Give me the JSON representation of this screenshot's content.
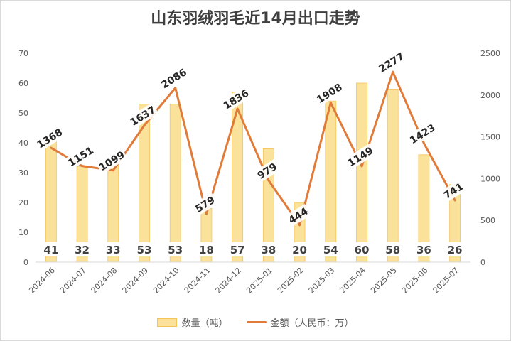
{
  "title": "山东羽绒羽毛近14月出口走势",
  "colors": {
    "bar_fill": "#fbe29a",
    "bar_edge": "#f4c45a",
    "line": "#e07b39",
    "label_bg": "#ffffff"
  },
  "legend": {
    "bar_label": "数量（吨）",
    "line_label": "金额（人民币：万）"
  },
  "chart_data": {
    "type": "bar+line",
    "title": "山东羽绒羽毛近14月出口走势",
    "categories": [
      "2024-06",
      "2024-07",
      "2024-08",
      "2024-09",
      "2024-10",
      "2024-11",
      "2024-12",
      "2025-01",
      "2025-02",
      "2025-03",
      "2025-04",
      "2025-05",
      "2025-06",
      "2025-07"
    ],
    "series": [
      {
        "name": "数量（吨）",
        "type": "bar",
        "axis": "left",
        "values": [
          41,
          32,
          33,
          53,
          53,
          18,
          57,
          38,
          20,
          54,
          60,
          58,
          36,
          26
        ]
      },
      {
        "name": "金额（人民币：万）",
        "type": "line",
        "axis": "right",
        "values": [
          1368,
          1151,
          1099,
          1637,
          2086,
          579,
          1836,
          979,
          444,
          1908,
          1149,
          2277,
          1423,
          741
        ]
      }
    ],
    "left_axis": {
      "min": 0,
      "max": 70,
      "step": 10,
      "ticks": [
        "0",
        "10",
        "20",
        "30",
        "40",
        "50",
        "60",
        "70"
      ]
    },
    "right_axis": {
      "min": 0,
      "max": 2500,
      "step": 500,
      "ticks": [
        "0",
        "500",
        "1000",
        "1500",
        "2000",
        "2500"
      ]
    },
    "grid": false,
    "legend_position": "bottom"
  }
}
